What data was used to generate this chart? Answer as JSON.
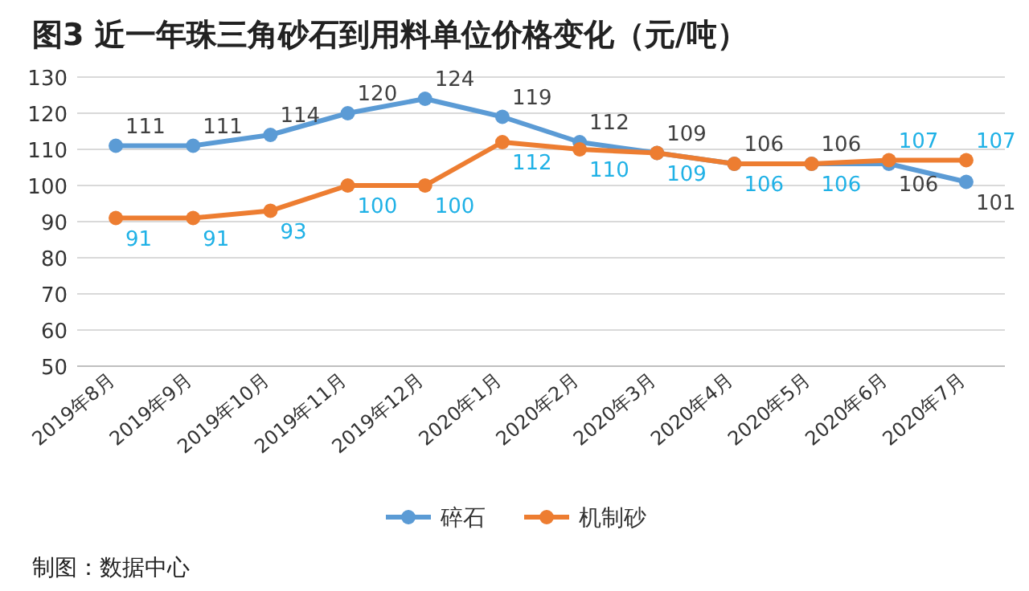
{
  "chart_data": {
    "type": "line",
    "title": "图3 近一年珠三角砂石到用料单位价格变化（元/吨）",
    "categories": [
      "2019年8月",
      "2019年9月",
      "2019年10月",
      "2019年11月",
      "2019年12月",
      "2020年1月",
      "2020年2月",
      "2020年3月",
      "2020年4月",
      "2020年5月",
      "2020年6月",
      "2020年7月"
    ],
    "series": [
      {
        "name": "碎石",
        "color": "#5b9bd5",
        "values": [
          111,
          111,
          114,
          120,
          124,
          119,
          112,
          109,
          106,
          106,
          106,
          101
        ]
      },
      {
        "name": "机制砂",
        "color": "#ed7d31",
        "values": [
          91,
          91,
          93,
          100,
          100,
          112,
          110,
          109,
          106,
          106,
          107,
          107
        ]
      }
    ],
    "ylim": [
      50,
      130
    ],
    "yticks": [
      50,
      60,
      70,
      80,
      90,
      100,
      110,
      120,
      130
    ],
    "grid": "y",
    "legend": "bottom",
    "marker": "circle",
    "data_labels": true,
    "annotations": [
      "制图：数据中心"
    ]
  }
}
